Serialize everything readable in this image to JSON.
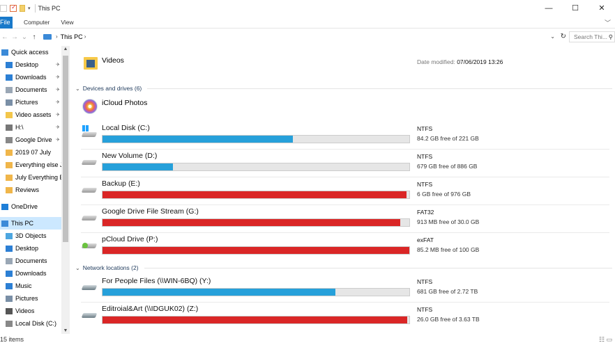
{
  "window": {
    "title": "This PC",
    "minimize": "—",
    "maximize": "☐",
    "close": "✕"
  },
  "ribbon": {
    "file": "File",
    "tabs": [
      "Computer",
      "View"
    ],
    "expand": "﹀"
  },
  "address": {
    "back": "←",
    "forward": "→",
    "recent": "⌄",
    "up": "↑",
    "path": "This PC",
    "search_placeholder": "Search Thi..."
  },
  "nav": {
    "items": [
      {
        "label": "Quick access",
        "pinned": false,
        "selected": false
      },
      {
        "label": "Desktop",
        "pinned": true,
        "selected": false
      },
      {
        "label": "Downloads",
        "pinned": true,
        "selected": false
      },
      {
        "label": "Documents",
        "pinned": true,
        "selected": false
      },
      {
        "label": "Pictures",
        "pinned": true,
        "selected": false
      },
      {
        "label": "Video assets",
        "pinned": true,
        "selected": false
      },
      {
        "label": "H:\\",
        "pinned": true,
        "selected": false
      },
      {
        "label": "Google Drive",
        "pinned": true,
        "selected": false
      },
      {
        "label": "2019 07 July",
        "pinned": false,
        "selected": false
      },
      {
        "label": "Everything else J",
        "pinned": false,
        "selected": false
      },
      {
        "label": "July Everything E",
        "pinned": false,
        "selected": false
      },
      {
        "label": "Reviews",
        "pinned": false,
        "selected": false
      },
      {
        "label": "OneDrive",
        "pinned": false,
        "selected": false
      },
      {
        "label": "This PC",
        "pinned": false,
        "selected": true
      },
      {
        "label": "3D Objects",
        "pinned": false,
        "selected": false
      },
      {
        "label": "Desktop",
        "pinned": false,
        "selected": false
      },
      {
        "label": "Documents",
        "pinned": false,
        "selected": false
      },
      {
        "label": "Downloads",
        "pinned": false,
        "selected": false
      },
      {
        "label": "Music",
        "pinned": false,
        "selected": false
      },
      {
        "label": "Pictures",
        "pinned": false,
        "selected": false
      },
      {
        "label": "Videos",
        "pinned": false,
        "selected": false
      },
      {
        "label": "Local Disk (C:)",
        "pinned": false,
        "selected": false
      }
    ]
  },
  "folders": {
    "videos": {
      "name": "Videos",
      "date_label": "Date modified:",
      "date_value": "07/06/2019 13:26"
    }
  },
  "groups": {
    "devices": "Devices and drives (6)",
    "network": "Network locations (2)"
  },
  "icloud": {
    "name": "iCloud Photos"
  },
  "drives": [
    {
      "name": "Local Disk (C:)",
      "fs": "NTFS",
      "free": "84.2 GB free of 221 GB",
      "used_fraction": 0.62,
      "critical": false,
      "icon": "windows-drive-icon"
    },
    {
      "name": "New Volume (D:)",
      "fs": "NTFS",
      "free": "679 GB free of 886 GB",
      "used_fraction": 0.23,
      "critical": false,
      "icon": "hard-drive-icon"
    },
    {
      "name": "Backup (E:)",
      "fs": "NTFS",
      "free": "6 GB free of 976 GB",
      "used_fraction": 0.99,
      "critical": true,
      "icon": "hard-drive-icon"
    },
    {
      "name": "Google Drive File Stream (G:)",
      "fs": "FAT32",
      "free": "913 MB free of 30.0 GB",
      "used_fraction": 0.97,
      "critical": true,
      "icon": "hard-drive-icon"
    },
    {
      "name": "pCloud Drive (P:)",
      "fs": "exFAT",
      "free": "85.2 MB free of 100 GB",
      "used_fraction": 0.999,
      "critical": true,
      "icon": "pcloud-drive-icon"
    }
  ],
  "network": [
    {
      "name": "For People Files (\\\\WIN-6BQ) (Y:)",
      "fs": "NTFS",
      "free": "681 GB free of 2.72 TB",
      "used_fraction": 0.76,
      "critical": false,
      "icon": "network-drive-icon"
    },
    {
      "name": "Editroial&Art (\\\\IDGUK02) (Z:)",
      "fs": "NTFS",
      "free": "26.0 GB free of 3.63 TB",
      "used_fraction": 0.993,
      "critical": true,
      "icon": "network-drive-icon"
    }
  ],
  "status": {
    "count": "15 items"
  },
  "colors": {
    "accent": "#1979ca",
    "bar_ok": "#26a0da",
    "bar_critical": "#da2626",
    "selection": "#cce8ff"
  }
}
